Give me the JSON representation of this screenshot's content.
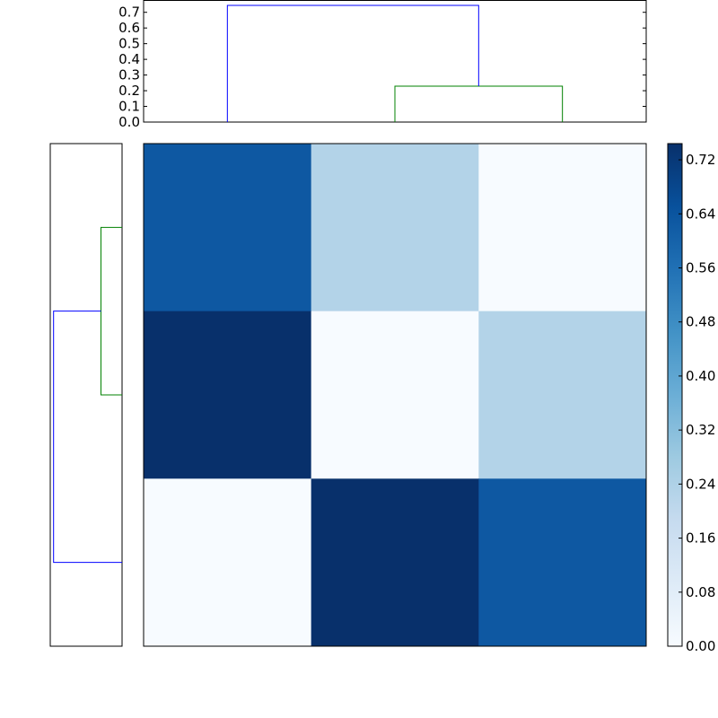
{
  "chart_data": [
    {
      "type": "dendrogram",
      "orientation": "top",
      "leaf_positions": [
        5,
        15,
        25
      ],
      "xlim": [
        0,
        30
      ],
      "ylim": [
        0,
        0.78
      ],
      "yticks": [
        "0.0",
        "0.1",
        "0.2",
        "0.3",
        "0.4",
        "0.5",
        "0.6",
        "0.7"
      ],
      "links": [
        {
          "color": "#008000",
          "x": [
            15,
            15,
            25,
            25
          ],
          "y": [
            0,
            0.229,
            0.229,
            0
          ]
        },
        {
          "color": "#0000ff",
          "x": [
            5,
            5,
            20,
            20
          ],
          "y": [
            0,
            0.744,
            0.744,
            0.229
          ]
        }
      ]
    },
    {
      "type": "dendrogram",
      "orientation": "left",
      "leaf_positions": [
        5,
        15,
        25
      ],
      "xlim": [
        0,
        30
      ],
      "ylim": [
        0,
        0.78
      ],
      "links": [
        {
          "color": "#008000",
          "x": [
            15,
            15,
            25,
            25
          ],
          "y": [
            0,
            0.229,
            0.229,
            0
          ]
        },
        {
          "color": "#0000ff",
          "x": [
            5,
            5,
            20,
            20
          ],
          "y": [
            0,
            0.744,
            0.744,
            0.229
          ]
        }
      ]
    },
    {
      "type": "heatmap",
      "colormap": "Blues",
      "values": [
        [
          0.63,
          0.23,
          0.0
        ],
        [
          0.744,
          0.0,
          0.23
        ],
        [
          0.0,
          0.744,
          0.63
        ]
      ],
      "colorbar": {
        "range": [
          0,
          0.744
        ],
        "ticks": [
          "0.00",
          "0.08",
          "0.16",
          "0.24",
          "0.32",
          "0.40",
          "0.48",
          "0.56",
          "0.64",
          "0.72"
        ]
      }
    }
  ]
}
